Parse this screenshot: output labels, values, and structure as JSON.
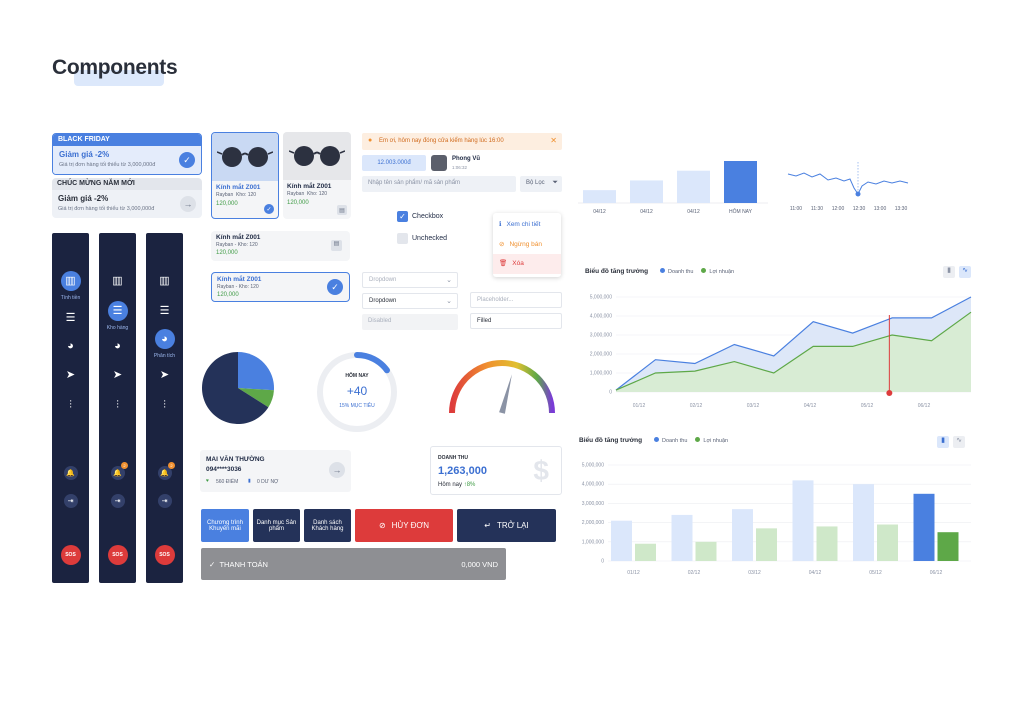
{
  "page": {
    "title": "Components"
  },
  "promo": {
    "card1": {
      "header": "BLACK FRIDAY",
      "title": "Giảm giá -2%",
      "subtitle": "Giá trị đơn hàng tối thiểu từ 3,000,000đ"
    },
    "card2": {
      "header": "CHÚC MỪNG NĂM MỚI",
      "title": "Giảm giá -2%",
      "subtitle": "Giá trị đơn hàng tối thiểu từ 3,000,000đ"
    }
  },
  "sidebar": {
    "labels": [
      "Tính tiền",
      "Kho hàng",
      "Phân tích"
    ],
    "sos": "SOS",
    "badge": "2"
  },
  "products": {
    "items": [
      {
        "name": "Kính mắt Z001",
        "brand": "Rayban",
        "stock": "Kho: 120",
        "price": "120,000"
      },
      {
        "name": "Kính mắt Z001",
        "brand": "Rayban",
        "stock": "Kho: 120",
        "price": "120,000"
      }
    ],
    "horizontal": [
      {
        "name": "Kính mắt Z001",
        "brand": "Rayban",
        "stock": "Kho: 120",
        "price": "120,000"
      },
      {
        "name": "Kính mắt Z001",
        "brand": "Rayban",
        "stock": "Kho: 120",
        "price": "120,000"
      }
    ]
  },
  "notification": {
    "text": "Em ơi, hôm nay đóng cửa kiểm hàng lúc 16:00",
    "close": "✕"
  },
  "amount_chip": "12.003.000đ",
  "user": {
    "name": "Phong Vũ",
    "time": "1:06:32"
  },
  "search": {
    "placeholder": "Nhập tên sản phẩm/ mã sản phẩm",
    "filter_label": "Bộ Lọc"
  },
  "checkbox": {
    "checked_label": "Checkbox",
    "unchecked_label": "Unchecked"
  },
  "menu": {
    "view": "Xem chi tiết",
    "stop": "Ngừng bán",
    "delete": "Xóa"
  },
  "fields": {
    "dropdown1": "Dropdown",
    "dropdown2": "Dropdown",
    "disabled": "Disabled",
    "placeholder": "Placeholder...",
    "filled": "Filled"
  },
  "progress": {
    "label": "HÔM NAY",
    "value": "+40",
    "sub": "15% MỤC TIÊU",
    "fraction": 0.15
  },
  "gauge": {
    "level": 0.58
  },
  "customer": {
    "name": "MAI VĂN THƯỜNG",
    "phone": "094****3036",
    "points": "560 ĐIỂM",
    "debt": "0 DƯ NỢ"
  },
  "revenue": {
    "label": "DOANH THU",
    "value": "1,263,000",
    "today_label": "Hôm nay",
    "change": "8%"
  },
  "buttons": {
    "promo": "Chương trình Khuyến mãi",
    "categories": "Danh mục Sản phẩm",
    "customers": "Danh sách Khách hàng",
    "cancel": "HỦY ĐƠN",
    "back": "TRỞ LẠI",
    "pay": "THANH TOÁN",
    "pay_amount": "0,000 VND"
  },
  "pie": {
    "values": [
      0.26,
      0.08,
      0.66
    ],
    "colors": [
      "#4a80e0",
      "#5ea848",
      "#243259"
    ]
  },
  "mini_bar": {
    "categories": [
      "04/12",
      "04/12",
      "04/12",
      "HÔM NAY"
    ],
    "values": [
      1,
      3,
      5,
      7
    ]
  },
  "mini_line": {
    "categories": [
      "11:00",
      "11:30",
      "12:00",
      "12:30",
      "13:00",
      "13:30"
    ]
  },
  "chart_data": [
    {
      "type": "area",
      "title": "Biểu đồ tăng trưởng",
      "series": [
        {
          "name": "Doanh thu",
          "values": [
            100000,
            1700000,
            1500000,
            2500000,
            1900000,
            3700000,
            3100000,
            3900000,
            3900000,
            5000000
          ]
        },
        {
          "name": "Lợi nhuận",
          "values": [
            100000,
            1000000,
            1100000,
            1600000,
            1000000,
            2400000,
            2400000,
            3000000,
            2700000,
            4200000
          ]
        }
      ],
      "x_ticks": [
        "01/12",
        "02/12",
        "03/12",
        "04/12",
        "05/12",
        "06/12"
      ],
      "y_ticks": [
        "5,000,000",
        "4,000,000",
        "3,000,000",
        "2,000,000",
        "1,000,000",
        "0"
      ],
      "ylim": [
        0,
        5000000
      ]
    },
    {
      "type": "bar",
      "title": "Biểu đồ tăng trưởng",
      "categories": [
        "01/12",
        "02/12",
        "03/12",
        "04/12",
        "05/12",
        "06/12"
      ],
      "series": [
        {
          "name": "Doanh thu",
          "values": [
            2100000,
            2400000,
            2700000,
            4200000,
            4000000,
            3500000
          ]
        },
        {
          "name": "Lợi nhuận",
          "values": [
            900000,
            1000000,
            1700000,
            1800000,
            1900000,
            1500000
          ]
        }
      ],
      "y_ticks": [
        "5,000,000",
        "4,000,000",
        "3,000,000",
        "2,000,000",
        "1,000,000",
        "0"
      ],
      "ylim": [
        0,
        5000000
      ]
    }
  ]
}
